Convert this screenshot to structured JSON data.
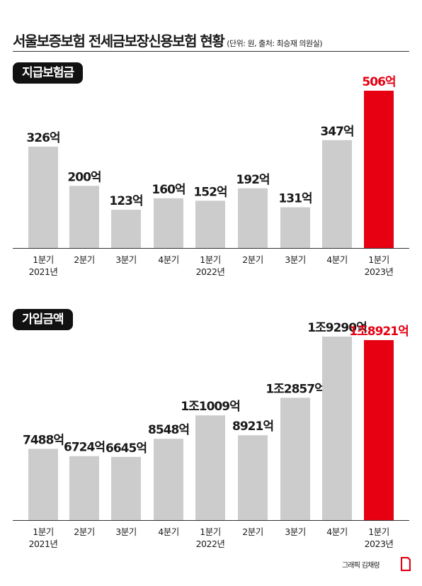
{
  "header": {
    "title": "서울보증보험 전세금보장신용보험 현황",
    "note": "(단위: 원, 출처: 최승재 의원실)"
  },
  "colors": {
    "bar": "#cccccc",
    "highlight": "#e60012",
    "text": "#1a1a1a",
    "label_bg": "#111111"
  },
  "footer": {
    "credit": "그래픽 김채령",
    "logo_icon": "red-corner-logo-icon"
  },
  "chart_data": [
    {
      "type": "bar",
      "title": "지급보험금",
      "categories": [
        [
          "1분기",
          "2021년"
        ],
        [
          "2분기",
          ""
        ],
        [
          "3분기",
          ""
        ],
        [
          "4분기",
          ""
        ],
        [
          "1분기",
          "2022년"
        ],
        [
          "2분기",
          ""
        ],
        [
          "3분기",
          ""
        ],
        [
          "4분기",
          ""
        ],
        [
          "1분기",
          "2023년"
        ]
      ],
      "values": [
        326,
        200,
        123,
        160,
        152,
        192,
        131,
        347,
        506
      ],
      "labels": [
        "326억",
        "200억",
        "123억",
        "160억",
        "152억",
        "192억",
        "131억",
        "347억",
        "506억"
      ],
      "highlight_index": 8,
      "unit": "억",
      "ylim": [
        0,
        506
      ]
    },
    {
      "type": "bar",
      "title": "가입금액",
      "categories": [
        [
          "1분기",
          "2021년"
        ],
        [
          "2분기",
          ""
        ],
        [
          "3분기",
          ""
        ],
        [
          "4분기",
          ""
        ],
        [
          "1분기",
          "2022년"
        ],
        [
          "2분기",
          ""
        ],
        [
          "3분기",
          ""
        ],
        [
          "4분기",
          ""
        ],
        [
          "1분기",
          "2023년"
        ]
      ],
      "values": [
        7488,
        6724,
        6645,
        8548,
        11009,
        8921,
        12857,
        19290,
        18921
      ],
      "labels": [
        "7488억",
        "6724억",
        "6645억",
        "8548억",
        "1조1009억",
        "8921억",
        "1조2857억",
        "1조9290억",
        "1조8921억"
      ],
      "highlight_index": 8,
      "unit": "억",
      "ylim": [
        0,
        19290
      ]
    }
  ]
}
